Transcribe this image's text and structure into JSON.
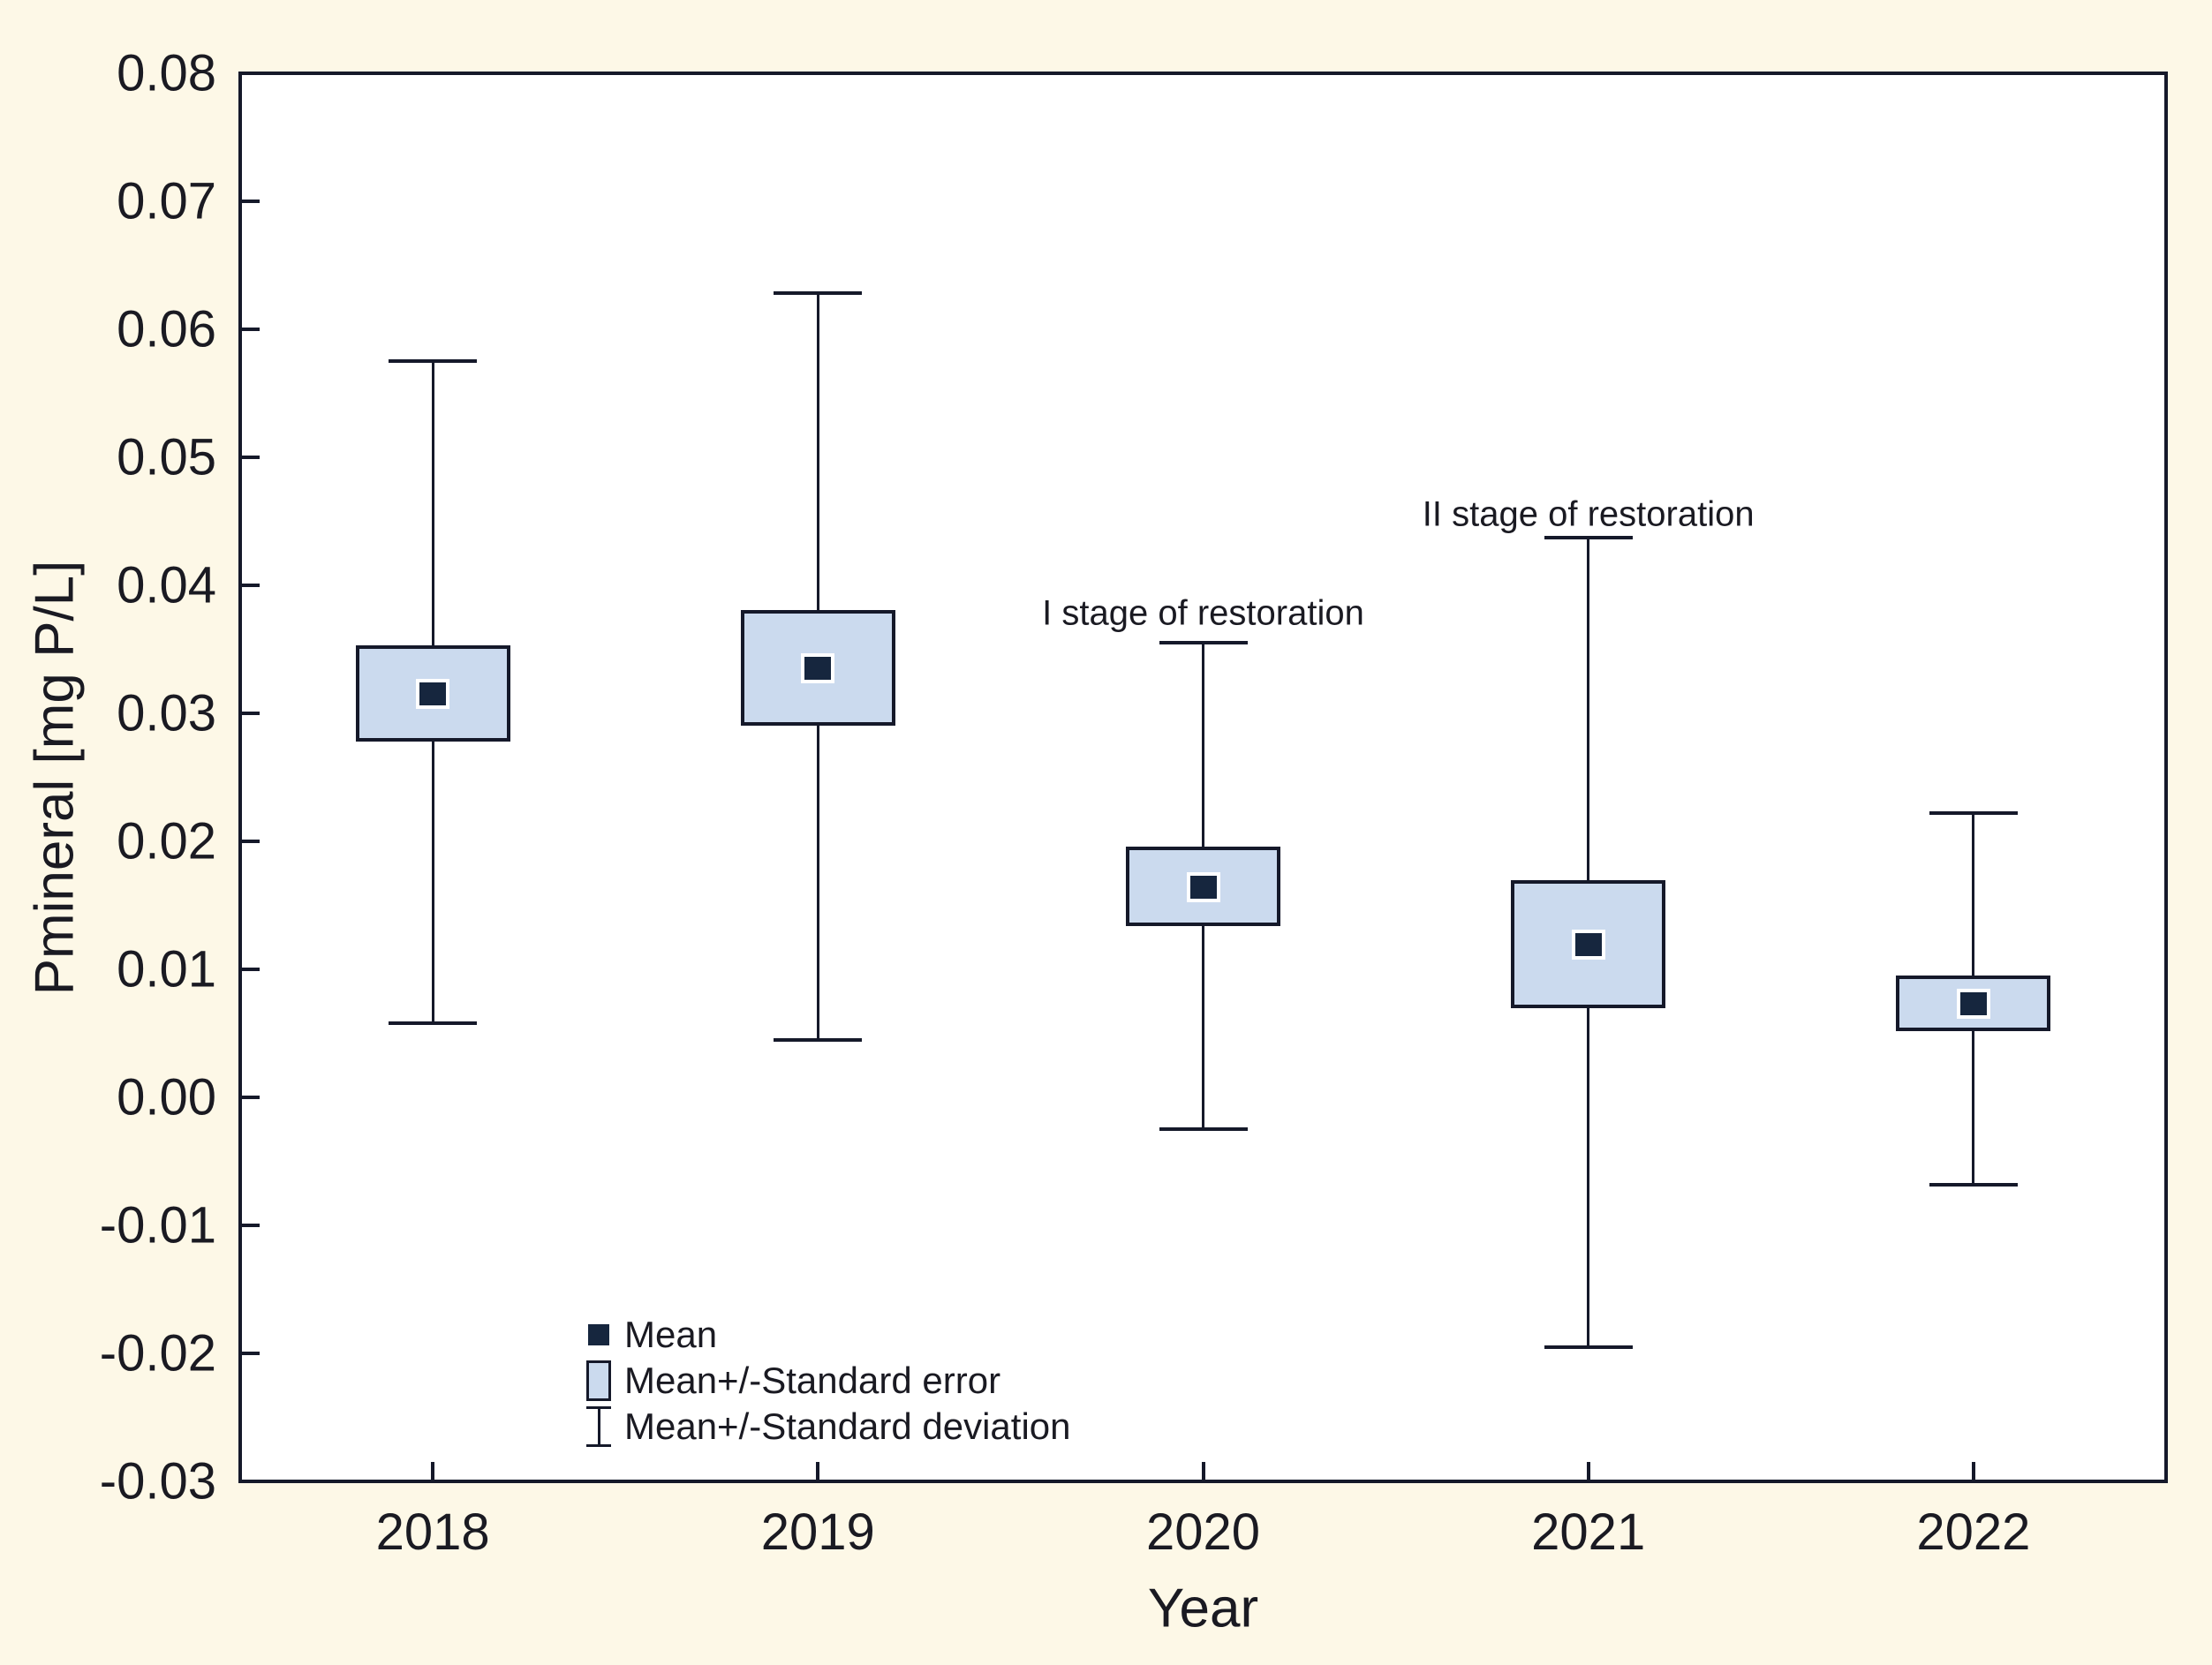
{
  "figure": {
    "background_color": "#fdf8e7",
    "plot_background_color": "#ffffff",
    "axis_line_color": "#15192a",
    "text_color": "#1a1a22"
  },
  "chart_data": {
    "type": "box",
    "variant": "mean-se-sd-plot",
    "title": "",
    "xlabel": "Year",
    "ylabel": "Pmineral [mg P/L]",
    "categories": [
      "2018",
      "2019",
      "2020",
      "2021",
      "2022"
    ],
    "ylim": [
      -0.03,
      0.08
    ],
    "y_tick_step": 0.01,
    "y_tick_labels": [
      "0.08",
      "0.07",
      "0.06",
      "0.05",
      "0.04",
      "0.03",
      "0.02",
      "0.01",
      "0.00",
      "-0.01",
      "-0.02",
      "-0.03"
    ],
    "grid": false,
    "series": [
      {
        "category": "2018",
        "mean": 0.0315,
        "se_low": 0.0278,
        "se_high": 0.0353,
        "sd_low": 0.0058,
        "sd_high": 0.0575
      },
      {
        "category": "2019",
        "mean": 0.0335,
        "se_low": 0.029,
        "se_high": 0.0381,
        "sd_low": 0.0045,
        "sd_high": 0.0628
      },
      {
        "category": "2020",
        "mean": 0.0164,
        "se_low": 0.0134,
        "se_high": 0.0196,
        "sd_low": -0.0025,
        "sd_high": 0.0355
      },
      {
        "category": "2021",
        "mean": 0.0119,
        "se_low": 0.007,
        "se_high": 0.017,
        "sd_low": -0.0195,
        "sd_high": 0.0437
      },
      {
        "category": "2022",
        "mean": 0.0073,
        "se_low": 0.0052,
        "se_high": 0.0095,
        "sd_low": -0.0068,
        "sd_high": 0.0222
      }
    ],
    "annotations": [
      {
        "text": "I stage of restoration",
        "category": "2020",
        "y": 0.0378
      },
      {
        "text": "II stage of restoration",
        "category": "2021",
        "y": 0.0455
      }
    ],
    "legend": {
      "position": "inside-bottom-left",
      "items": [
        {
          "glyph": "mean-square",
          "label": "Mean"
        },
        {
          "glyph": "se-box",
          "label": "Mean+/-Standard error"
        },
        {
          "glyph": "sd-whisker",
          "label": "Mean+/-Standard deviation"
        }
      ]
    },
    "colors": {
      "se_box_fill": "#cbdaee",
      "se_box_border": "#15192a",
      "mean_marker_fill": "#16263e",
      "mean_marker_halo": "#ffffff",
      "whisker_color": "#15192a"
    }
  }
}
